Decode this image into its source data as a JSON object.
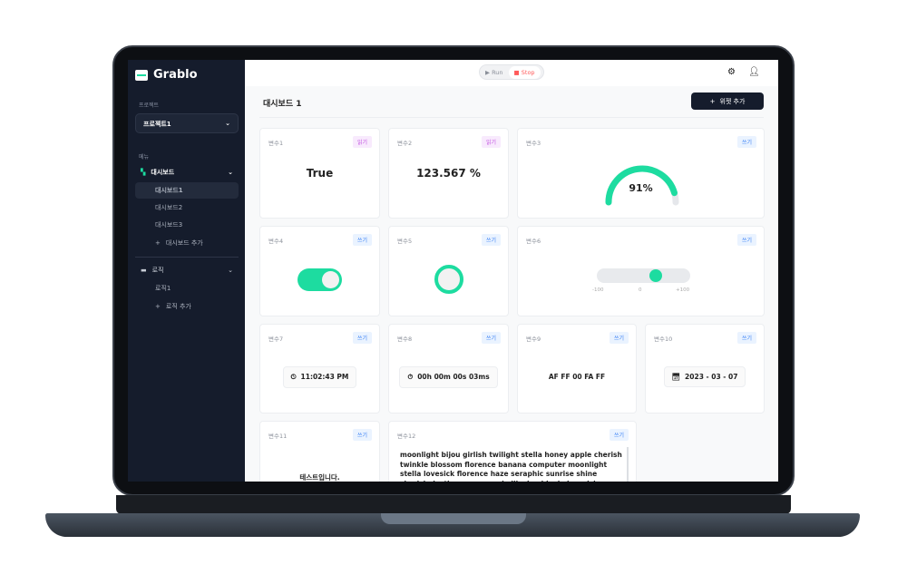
{
  "app": {
    "name": "Grablo"
  },
  "sidebar": {
    "project_label": "프로젝트",
    "project_value": "프로젝트1",
    "menu_label": "메뉴",
    "dashboard": {
      "label": "대시보드",
      "items": [
        "대시보드1",
        "대시보드2",
        "대시보드3"
      ],
      "add": "대시보드 추가"
    },
    "logic": {
      "label": "로직",
      "items": [
        "로직1"
      ],
      "add": "로직 추가"
    }
  },
  "topbar": {
    "run": "Run",
    "stop": "Stop"
  },
  "main": {
    "title": "대시보드 1",
    "add_widget": "위젯 추가"
  },
  "badges": {
    "read": "읽기",
    "write": "쓰기"
  },
  "widgets": {
    "v1": {
      "label": "변수1",
      "value": "True"
    },
    "v2": {
      "label": "변수2",
      "value": "123.567 %"
    },
    "v3": {
      "label": "변수3",
      "value": "91%",
      "percent": 91
    },
    "v4": {
      "label": "변수4",
      "on": true
    },
    "v5": {
      "label": "변수5"
    },
    "v6": {
      "label": "변수6",
      "min": "-100",
      "mid": "0",
      "max": "+100",
      "value": 30
    },
    "v7": {
      "label": "변수7",
      "value": "11:02:43 PM"
    },
    "v8": {
      "label": "변수8",
      "value": "00h 00m 00s 03ms"
    },
    "v9": {
      "label": "변수9",
      "value": "AF FF 00 FA FF"
    },
    "v10": {
      "label": "변수10",
      "value": "2023 - 03 - 07"
    },
    "v11": {
      "label": "변수11",
      "value": "테스트입니다."
    },
    "v12": {
      "label": "변수12",
      "value": "moonlight bijou girlish twilight stella honey apple cherish twinkle blossom florence banana computer moonlight stella lovesick florence haze seraphic sunrise shine cherish destiny masquerade illusion ideale lovesick illusion charming heimish"
    }
  },
  "colors": {
    "accent": "#1ddca0",
    "sidebar": "#151c2c",
    "stop": "#ff5a5a"
  }
}
